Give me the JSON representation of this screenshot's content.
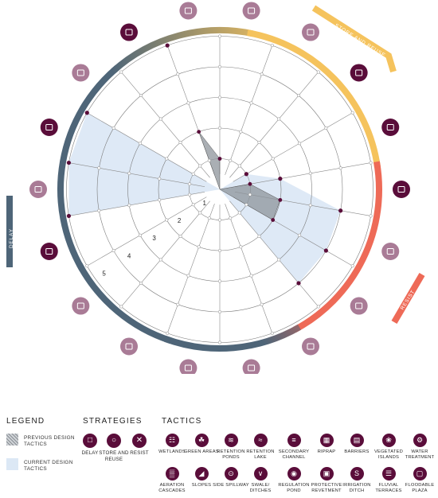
{
  "chart_data": {
    "type": "radar",
    "axes": [
      "WETLANDS",
      "GREEN AREAS",
      "RETENTION PONDS",
      "RETENTION LAKE",
      "SECONDARY CHANNEL",
      "RIPRAP",
      "BARRIERS",
      "VEGETATED ISLANDS",
      "WATER TREATMENT",
      "AERATION CASCADES",
      "SLOPES",
      "SIDE SPILLWAY",
      "SWALE/ DITCHES",
      "REGULATION POND",
      "PROTECTIVE REVETMENT",
      "IRRIGATION DITCH",
      "FLUVIAL TERRACES",
      "FLOODABLE PLAZA"
    ],
    "scale_labels": [
      "1",
      "2",
      "3",
      "4",
      "5"
    ],
    "rmax": 5,
    "series": [
      {
        "name": "CURRENT DESIGN TACTICS",
        "values": [
          0,
          0,
          0,
          1,
          2,
          4,
          4,
          4,
          0,
          0,
          0,
          0,
          0,
          5,
          5,
          5,
          0,
          5
        ]
      },
      {
        "name": "PREVIOUS DESIGN TACTICS",
        "values": [
          1,
          0,
          0,
          0,
          1,
          2,
          2,
          0,
          0,
          0,
          0,
          0,
          0,
          0,
          0,
          0,
          0,
          2
        ]
      }
    ]
  },
  "ring_labels": {
    "store": "STORE AND REUSE",
    "resist": "RESIST",
    "delay": "DELAY"
  },
  "colors": {
    "delay": "#4e6578",
    "store": "#f5c35d",
    "resist": "#ee6a57",
    "icon_dark": "#5a0d3a",
    "icon_light": "#a97b96",
    "current_fill": "#dce8f5",
    "previous_fill": "#8d949b",
    "marker": "#5a0d3a"
  },
  "legend": {
    "title": "LEGEND",
    "previous": "PREVIOUS DESIGN TACTICS",
    "current": "CURRENT DESIGN TACTICS"
  },
  "strategies": {
    "title": "STRATEGIES",
    "items": [
      {
        "label": "DELAY",
        "icon": "square-icon"
      },
      {
        "label": "STORE AND REUSE",
        "icon": "circle-icon"
      },
      {
        "label": "RESIST",
        "icon": "cross-icon"
      }
    ]
  },
  "tactics": {
    "title": "TACTICS",
    "row1": [
      {
        "label": "WETLANDS",
        "icon": "wetlands-icon"
      },
      {
        "label": "GREEN AREAS",
        "icon": "leaf-icon"
      },
      {
        "label": "RETENTION PONDS",
        "icon": "pond-icon"
      },
      {
        "label": "RETENTION LAKE",
        "icon": "lake-icon"
      },
      {
        "label": "SECONDARY CHANNEL",
        "icon": "channel-icon"
      },
      {
        "label": "RIPRAP",
        "icon": "riprap-icon"
      },
      {
        "label": "BARRIERS",
        "icon": "barrier-icon"
      },
      {
        "label": "VEGETATED ISLANDS",
        "icon": "island-icon"
      },
      {
        "label": "WATER TREATMENT",
        "icon": "treatment-icon"
      }
    ],
    "row2": [
      {
        "label": "AERATION CASCADES",
        "icon": "cascade-icon"
      },
      {
        "label": "SLOPES",
        "icon": "slope-icon"
      },
      {
        "label": "SIDE SPILLWAY",
        "icon": "spillway-icon"
      },
      {
        "label": "SWALE/ DITCHES",
        "icon": "swale-icon"
      },
      {
        "label": "REGULATION POND",
        "icon": "regulation-icon"
      },
      {
        "label": "PROTECTIVE REVETMENT",
        "icon": "revetment-icon"
      },
      {
        "label": "IRRIGATION DITCH",
        "icon": "irrigation-icon"
      },
      {
        "label": "FLUVIAL TERRACES",
        "icon": "terrace-icon"
      },
      {
        "label": "FLOODABLE PLAZA",
        "icon": "plaza-icon"
      }
    ]
  }
}
